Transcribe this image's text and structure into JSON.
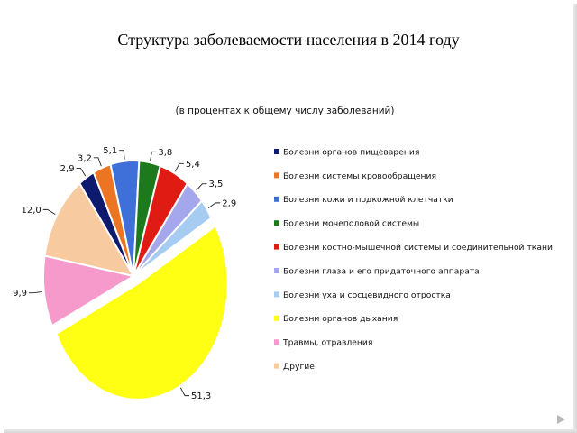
{
  "slide": {
    "title": "Структура заболеваемости населения в 2014 году"
  },
  "chart_data": {
    "type": "pie",
    "title": "Структура заболеваемости населения в 2014 году",
    "subtitle": "(в процентах к общему числу заболеваний)",
    "legend_position": "right",
    "series": [
      {
        "name": "Болезни органов пищеварения",
        "value": 2.9,
        "label": "2,9",
        "color": "#0d1a6e"
      },
      {
        "name": "Болезни системы кровообращения",
        "value": 3.2,
        "label": "3,2",
        "color": "#ec7524"
      },
      {
        "name": "Болезни кожи и подкожной клетчатки",
        "value": 5.1,
        "label": "5,1",
        "color": "#3f6fd8"
      },
      {
        "name": "Болезни мочеполовой системы",
        "value": 3.8,
        "label": "3,8",
        "color": "#1c7a1c"
      },
      {
        "name": "Болезни костно-мышечной системы и соединительной ткани",
        "value": 5.4,
        "label": "5,4",
        "color": "#e01b14"
      },
      {
        "name": "Болезни глаза и его придаточного аппарата",
        "value": 3.5,
        "label": "3,5",
        "color": "#a5a7ec"
      },
      {
        "name": "Болезни уха и сосцевидного отростка",
        "value": 2.9,
        "label": "2,9",
        "color": "#a6ccf2"
      },
      {
        "name": "Болезни органов дыхания",
        "value": 51.3,
        "label": "51,3",
        "color": "#ffff14"
      },
      {
        "name": "Травмы, отравления",
        "value": 9.9,
        "label": "9,9",
        "color": "#f59acb"
      },
      {
        "name": "Другие",
        "value": 12.0,
        "label": "12,0",
        "color": "#f8caa0"
      }
    ]
  }
}
